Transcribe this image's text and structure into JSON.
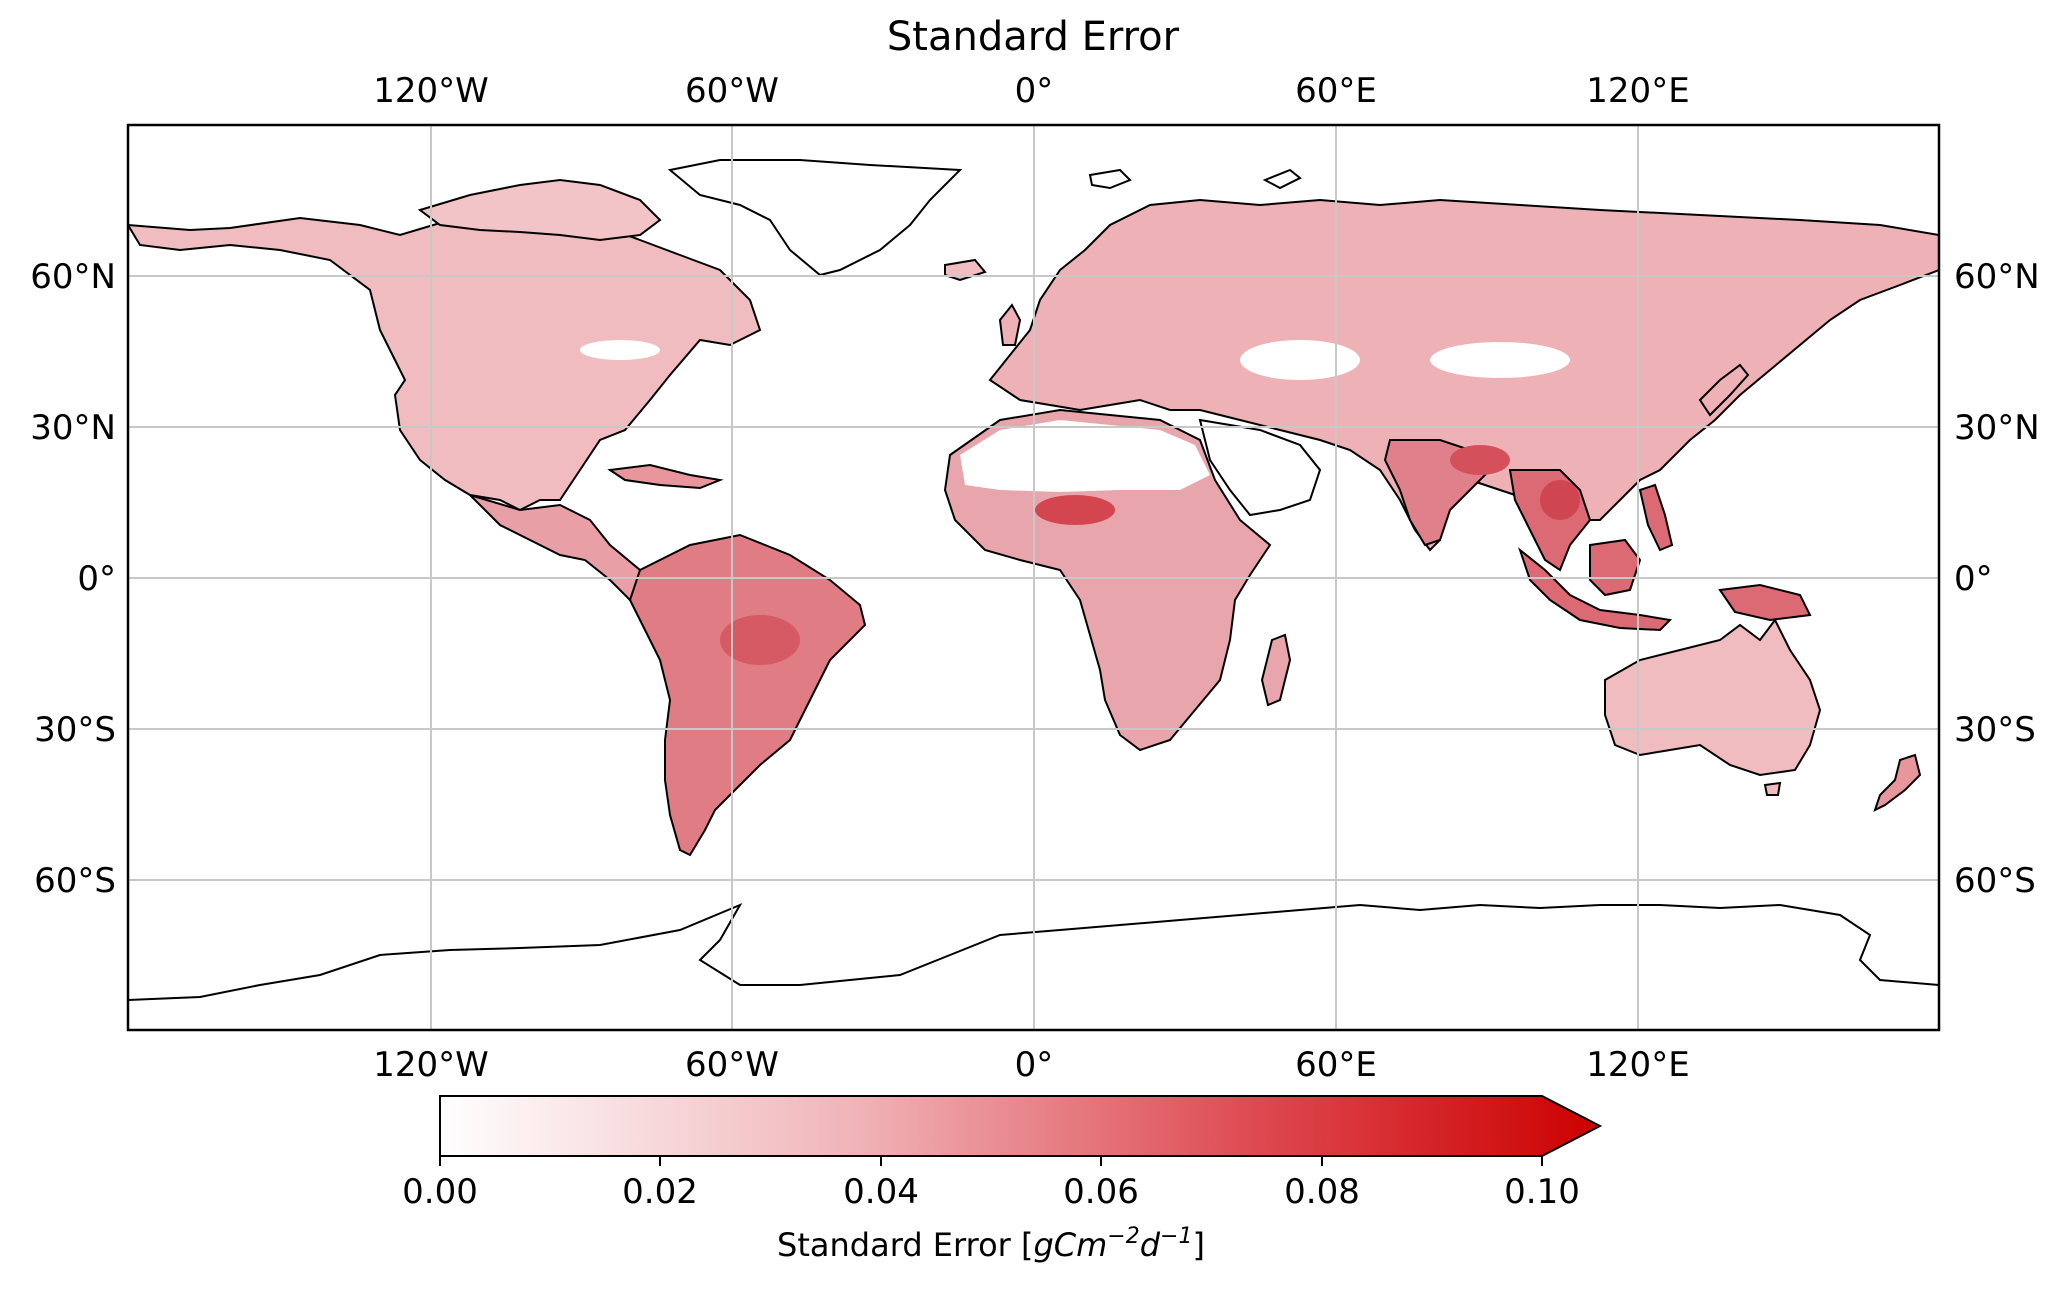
{
  "title": "Standard Error",
  "longitude_ticks": [
    "120°W",
    "60°W",
    "0°",
    "60°E",
    "120°E"
  ],
  "latitude_ticks": [
    "60°N",
    "30°N",
    "0°",
    "30°S",
    "60°S"
  ],
  "colorbar": {
    "label_prefix": "Standard Error [",
    "unit": "gCm",
    "unit_exp1": "−2",
    "unit_mid": "d",
    "unit_exp2": "−1",
    "label_suffix": "]",
    "ticks": [
      "0.00",
      "0.02",
      "0.04",
      "0.06",
      "0.08",
      "0.10"
    ],
    "range": [
      0.0,
      0.1
    ],
    "extend": "max",
    "colors": [
      "#ffffff",
      "#cc0000"
    ]
  },
  "colors": {
    "land_light": "#f2c4c8",
    "land_medium": "#e8959b",
    "land_dark": "#d9535d",
    "no_data": "#ffffff",
    "grid": "#c8c8c8",
    "coastline": "#000000"
  }
}
